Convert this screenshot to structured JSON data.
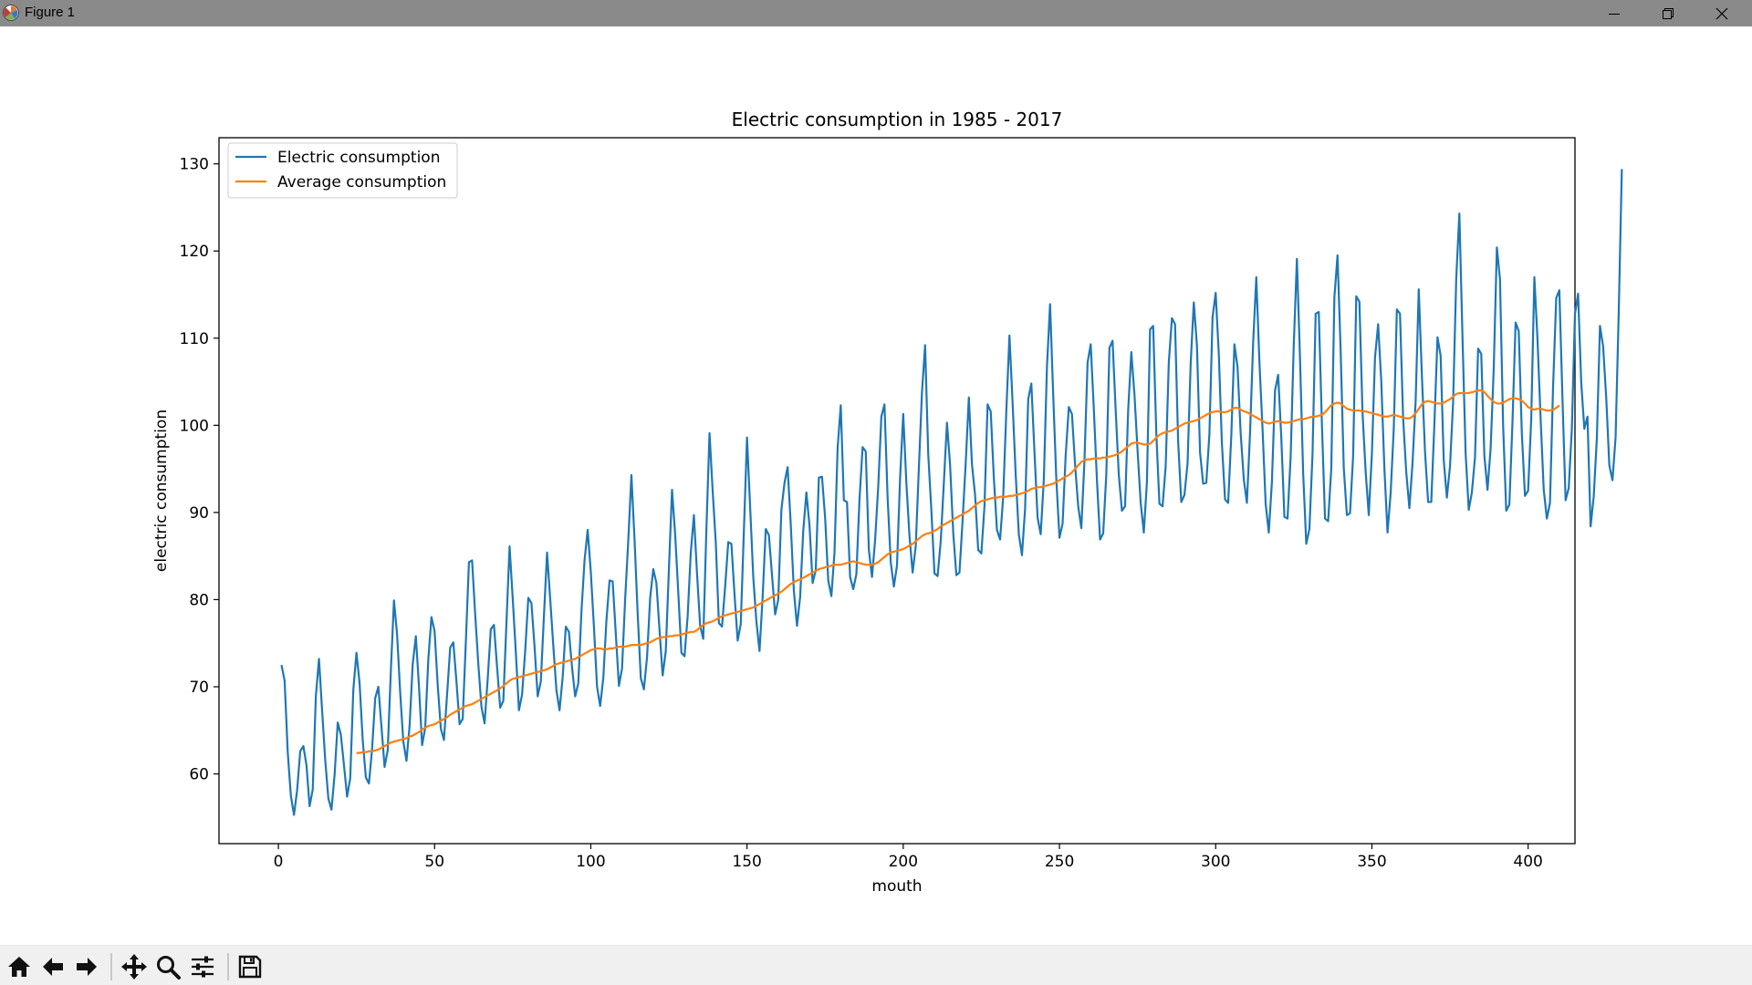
{
  "window": {
    "title": "Figure 1",
    "icons": {
      "app": "matplotlib-icon",
      "minimize": "minimize-icon",
      "maximize": "restore-icon",
      "close": "close-icon"
    }
  },
  "toolbar": {
    "buttons": [
      {
        "name": "home-button",
        "icon": "home-icon"
      },
      {
        "name": "back-button",
        "icon": "arrow-left-icon"
      },
      {
        "name": "forward-button",
        "icon": "arrow-right-icon"
      },
      {
        "name": "pan-button",
        "icon": "move-icon"
      },
      {
        "name": "zoom-button",
        "icon": "magnifier-icon"
      },
      {
        "name": "configure-subplots-button",
        "icon": "sliders-icon"
      },
      {
        "name": "save-button",
        "icon": "floppy-disk-icon"
      }
    ]
  },
  "chart_data": {
    "type": "line",
    "title": "Electric consumption in 1985 - 2017",
    "xlabel": "mouth",
    "ylabel": "electric consumption",
    "xlim": [
      -19,
      415
    ],
    "ylim": [
      52,
      133
    ],
    "xticks": [
      0,
      50,
      100,
      150,
      200,
      250,
      300,
      350,
      400
    ],
    "yticks": [
      60,
      70,
      80,
      90,
      100,
      110,
      120,
      130
    ],
    "legend_position": "top-left",
    "grid": false,
    "colors": {
      "electric": "#1f77b4",
      "average": "#ff7f0e"
    },
    "series": [
      {
        "name": "Electric consumption",
        "x_start": 1,
        "x_step": 1,
        "values": [
          72.5,
          70.7,
          62.5,
          57.5,
          55.3,
          58.1,
          62.6,
          63.2,
          61.0,
          56.3,
          58.2,
          68.9,
          73.2,
          67.3,
          61.6,
          57.2,
          55.9,
          59.9,
          65.9,
          64.5,
          61.0,
          57.4,
          59.5,
          69.7,
          73.9,
          70.4,
          63.9,
          59.6,
          58.9,
          62.9,
          68.7,
          70.0,
          65.4,
          60.8,
          62.7,
          71.8,
          79.9,
          76.0,
          69.3,
          63.7,
          61.5,
          65.5,
          72.6,
          75.8,
          70.1,
          63.3,
          65.3,
          73.2,
          78.0,
          76.4,
          70.2,
          65.2,
          63.9,
          69.1,
          74.5,
          75.1,
          70.6,
          65.7,
          66.3,
          75.1,
          84.3,
          84.5,
          78.3,
          72.6,
          67.7,
          65.8,
          70.9,
          76.6,
          77.1,
          72.3,
          67.6,
          68.4,
          77.3,
          86.1,
          80.2,
          74.0,
          67.3,
          69.1,
          74.1,
          80.2,
          79.6,
          74.6,
          68.9,
          70.6,
          78.1,
          85.4,
          80.1,
          74.7,
          69.6,
          67.3,
          71.1,
          76.9,
          76.3,
          72.2,
          68.9,
          70.4,
          78.6,
          84.5,
          88.0,
          83.2,
          76.9,
          70.0,
          67.8,
          71.0,
          77.6,
          82.2,
          82.1,
          76.1,
          70.1,
          72.1,
          80.1,
          86.8,
          94.3,
          86.9,
          78.4,
          71.0,
          69.7,
          73.4,
          80.2,
          83.5,
          81.9,
          76.5,
          71.3,
          74.1,
          83.5,
          92.6,
          87.5,
          80.8,
          73.9,
          73.5,
          78.1,
          85.4,
          89.7,
          83.0,
          77.0,
          75.5,
          88.1,
          99.1,
          92.5,
          86.6,
          77.3,
          76.9,
          81.5,
          86.6,
          86.4,
          80.6,
          75.3,
          77.2,
          87.9,
          98.6,
          90.6,
          82.6,
          77.5,
          74.1,
          80.3,
          88.1,
          87.4,
          82.8,
          78.3,
          80.0,
          90.3,
          93.4,
          95.2,
          88.6,
          81.0,
          77.0,
          80.3,
          87.9,
          92.3,
          88.5,
          81.9,
          83.4,
          94.0,
          94.1,
          89.4,
          82.2,
          80.4,
          85.4,
          97.4,
          102.3,
          91.4,
          91.2,
          82.6,
          81.2,
          82.9,
          91.5,
          97.5,
          97.0,
          85.7,
          82.6,
          86.8,
          93.0,
          101.0,
          102.4,
          91.7,
          84.3,
          81.5,
          83.9,
          94.0,
          101.3,
          93.4,
          87.3,
          83.1,
          86.1,
          95.1,
          103.8,
          109.2,
          96.7,
          90.3,
          83.0,
          82.7,
          86.7,
          93.4,
          100.3,
          95.4,
          87.7,
          82.8,
          83.1,
          89.1,
          95.7,
          103.2,
          95.5,
          92.0,
          85.7,
          85.3,
          90.7,
          102.4,
          101.6,
          94.0,
          88.0,
          86.9,
          91.8,
          101.7,
          110.3,
          102.6,
          94.3,
          87.5,
          85.1,
          90.4,
          103.0,
          104.8,
          97.0,
          89.4,
          87.5,
          93.8,
          106.7,
          113.9,
          103.5,
          93.8,
          87.1,
          88.7,
          96.6,
          102.1,
          101.3,
          95.5,
          90.7,
          88.2,
          95.9,
          107.2,
          109.3,
          101.9,
          93.7,
          86.9,
          87.6,
          94.4,
          108.9,
          109.7,
          101.7,
          94.3,
          90.2,
          90.7,
          101.8,
          108.4,
          103.6,
          97.1,
          91.1,
          87.7,
          93.5,
          111.0,
          111.4,
          99.1,
          91.0,
          90.7,
          95.3,
          107.2,
          112.3,
          111.6,
          98.0,
          91.2,
          92.0,
          95.6,
          107.1,
          114.1,
          109.2,
          96.9,
          93.3,
          93.4,
          99.0,
          112.4,
          115.2,
          108.2,
          97.9,
          91.5,
          91.1,
          98.8,
          109.3,
          106.7,
          99.1,
          93.8,
          91.1,
          99.1,
          109.5,
          117.0,
          107.3,
          99.6,
          91.0,
          87.7,
          93.5,
          104.0,
          105.8,
          98.6,
          89.5,
          89.3,
          96.4,
          109.3,
          119.1,
          107.6,
          94.5,
          86.4,
          88.1,
          96.7,
          112.8,
          113.0,
          100.2,
          89.3,
          89.0,
          95.0,
          114.7,
          119.5,
          108.6,
          95.1,
          89.7,
          89.9,
          96.5,
          114.8,
          114.2,
          101.5,
          94.7,
          89.7,
          96.7,
          107.8,
          111.6,
          105.1,
          95.1,
          87.7,
          92.2,
          99.6,
          113.3,
          112.8,
          100.8,
          94.6,
          90.5,
          95.6,
          102.8,
          115.6,
          105.7,
          97.0,
          91.2,
          91.2,
          100.1,
          110.1,
          108.0,
          96.0,
          91.7,
          95.3,
          102.7,
          116.9,
          124.3,
          110.1,
          96.8,
          90.3,
          92.3,
          96.3,
          108.8,
          108.2,
          96.5,
          92.6,
          97.3,
          106.5,
          120.4,
          116.8,
          100.0,
          90.2,
          90.9,
          100.4,
          111.8,
          110.8,
          99.0,
          91.9,
          92.5,
          100.7,
          117.0,
          109.9,
          100.8,
          92.6,
          89.3,
          91.1,
          104.5,
          114.6,
          115.5,
          103.1,
          91.4,
          92.8,
          99.6,
          112.8,
          115.1,
          104.9,
          99.6,
          101.0,
          88.4,
          91.8,
          98.5,
          111.4,
          109.1,
          103.2,
          95.4,
          93.7,
          98.6,
          112.9,
          129.4
        ]
      },
      {
        "name": "Average consumption",
        "x_start": 25,
        "x_step": 1,
        "values": [
          62.4,
          62.4,
          62.5,
          62.5,
          62.6,
          62.6,
          62.7,
          62.8,
          63.0,
          63.2,
          63.4,
          63.6,
          63.7,
          63.8,
          63.9,
          64.0,
          64.1,
          64.3,
          64.4,
          64.6,
          64.8,
          65.1,
          65.3,
          65.5,
          65.6,
          65.7,
          65.9,
          66.1,
          66.3,
          66.5,
          66.8,
          67.0,
          67.2,
          67.4,
          67.6,
          67.8,
          67.9,
          68.0,
          68.2,
          68.4,
          68.6,
          68.8,
          69.0,
          69.2,
          69.4,
          69.6,
          69.8,
          70.1,
          70.4,
          70.7,
          70.9,
          71.0,
          71.1,
          71.2,
          71.3,
          71.4,
          71.5,
          71.6,
          71.7,
          71.8,
          71.9,
          72.0,
          72.2,
          72.4,
          72.6,
          72.7,
          72.8,
          72.9,
          73.0,
          73.1,
          73.2,
          73.4,
          73.6,
          73.8,
          74.0,
          74.2,
          74.3,
          74.4,
          74.4,
          74.3,
          74.3,
          74.4,
          74.4,
          74.5,
          74.6,
          74.6,
          74.6,
          74.7,
          74.8,
          74.8,
          74.8,
          74.8,
          74.9,
          75.0,
          75.1,
          75.3,
          75.5,
          75.6,
          75.7,
          75.7,
          75.8,
          75.8,
          75.9,
          75.9,
          76.0,
          76.1,
          76.2,
          76.3,
          76.3,
          76.5,
          76.8,
          77.1,
          77.3,
          77.4,
          77.5,
          77.7,
          77.9,
          78.1,
          78.2,
          78.3,
          78.4,
          78.5,
          78.6,
          78.7,
          78.8,
          78.9,
          79.0,
          79.1,
          79.3,
          79.5,
          79.7,
          79.9,
          80.1,
          80.3,
          80.5,
          80.7,
          80.9,
          81.2,
          81.5,
          81.8,
          82.0,
          82.2,
          82.3,
          82.5,
          82.7,
          82.9,
          83.1,
          83.3,
          83.5,
          83.6,
          83.7,
          83.8,
          83.9,
          84.0,
          84.0,
          84.0,
          84.1,
          84.2,
          84.3,
          84.4,
          84.3,
          84.2,
          84.1,
          84.0,
          84.0,
          84.0,
          84.1,
          84.3,
          84.6,
          84.9,
          85.2,
          85.4,
          85.5,
          85.6,
          85.7,
          85.8,
          86.0,
          86.2,
          86.4,
          86.7,
          87.0,
          87.3,
          87.5,
          87.6,
          87.7,
          87.9,
          88.1,
          88.4,
          88.6,
          88.8,
          89.0,
          89.2,
          89.4,
          89.6,
          89.8,
          90.0,
          90.2,
          90.5,
          90.8,
          91.1,
          91.3,
          91.4,
          91.5,
          91.6,
          91.7,
          91.7,
          91.8,
          91.8,
          91.8,
          91.9,
          91.9,
          92.0,
          92.1,
          92.2,
          92.3,
          92.5,
          92.7,
          92.8,
          92.9,
          92.9,
          93.0,
          93.1,
          93.2,
          93.3,
          93.5,
          93.7,
          93.9,
          94.1,
          94.3,
          94.6,
          95.0,
          95.4,
          95.8,
          96.0,
          96.1,
          96.1,
          96.2,
          96.2,
          96.2,
          96.3,
          96.3,
          96.4,
          96.5,
          96.6,
          96.8,
          97.0,
          97.3,
          97.6,
          97.9,
          98.0,
          98.0,
          97.9,
          97.8,
          97.8,
          97.9,
          98.2,
          98.6,
          98.9,
          99.1,
          99.2,
          99.3,
          99.4,
          99.6,
          99.8,
          100.0,
          100.2,
          100.3,
          100.4,
          100.5,
          100.6,
          100.8,
          101.0,
          101.2,
          101.4,
          101.5,
          101.6,
          101.6,
          101.5,
          101.5,
          101.6,
          101.8,
          102.0,
          102.0,
          101.8,
          101.6,
          101.5,
          101.3,
          101.1,
          100.9,
          100.7,
          100.5,
          100.3,
          100.2,
          100.3,
          100.4,
          100.5,
          100.4,
          100.3,
          100.3,
          100.4,
          100.5,
          100.6,
          100.7,
          100.7,
          100.8,
          100.9,
          101.0,
          101.0,
          101.1,
          101.2,
          101.5,
          101.9,
          102.3,
          102.5,
          102.6,
          102.5,
          102.2,
          101.9,
          101.8,
          101.7,
          101.7,
          101.7,
          101.6,
          101.6,
          101.5,
          101.4,
          101.3,
          101.2,
          101.1,
          101.0,
          101.0,
          101.1,
          101.2,
          101.1,
          101.0,
          100.9,
          100.8,
          100.8,
          101.0,
          101.4,
          101.9,
          102.4,
          102.7,
          102.8,
          102.7,
          102.6,
          102.5,
          102.5,
          102.6,
          102.8,
          103.0,
          103.3,
          103.6,
          103.7,
          103.7,
          103.7,
          103.7,
          103.8,
          103.9,
          104.0,
          104.0,
          103.8,
          103.4,
          103.0,
          102.7,
          102.5,
          102.5,
          102.6,
          102.8,
          103.0,
          103.1,
          103.1,
          103.0,
          102.8,
          102.5,
          102.1,
          101.9,
          101.8,
          101.9,
          101.9,
          101.8,
          101.7,
          101.7,
          101.8,
          102.0,
          102.3
        ]
      }
    ]
  }
}
